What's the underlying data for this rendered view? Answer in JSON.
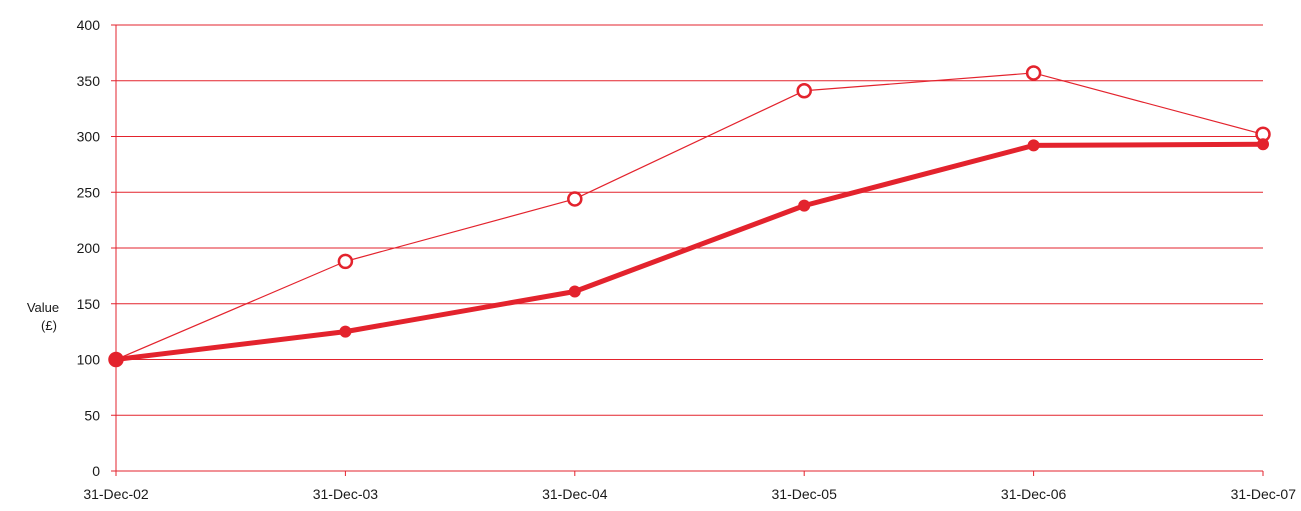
{
  "chart_data": {
    "type": "line",
    "title": "",
    "xlabel": "",
    "ylabel": "Value",
    "ylabel_unit": "(£)",
    "categories": [
      "31-Dec-02",
      "31-Dec-03",
      "31-Dec-04",
      "31-Dec-05",
      "31-Dec-06",
      "31-Dec-07"
    ],
    "ylim": [
      0,
      400
    ],
    "yticks": [
      0,
      50,
      100,
      150,
      200,
      250,
      300,
      350,
      400
    ],
    "grid": true,
    "series": [
      {
        "marker": "filled-circle",
        "line_weight": "thick",
        "color": "#e3232d",
        "values": [
          100,
          125,
          161,
          238,
          292,
          293
        ]
      },
      {
        "marker": "hollow-circle",
        "line_weight": "thin",
        "color": "#e3232d",
        "values": [
          100,
          188,
          244,
          341,
          357,
          302
        ]
      }
    ]
  },
  "colors": {
    "accent": "#e3232d",
    "axis": "#e3232d",
    "text": "#1a1a1a"
  }
}
